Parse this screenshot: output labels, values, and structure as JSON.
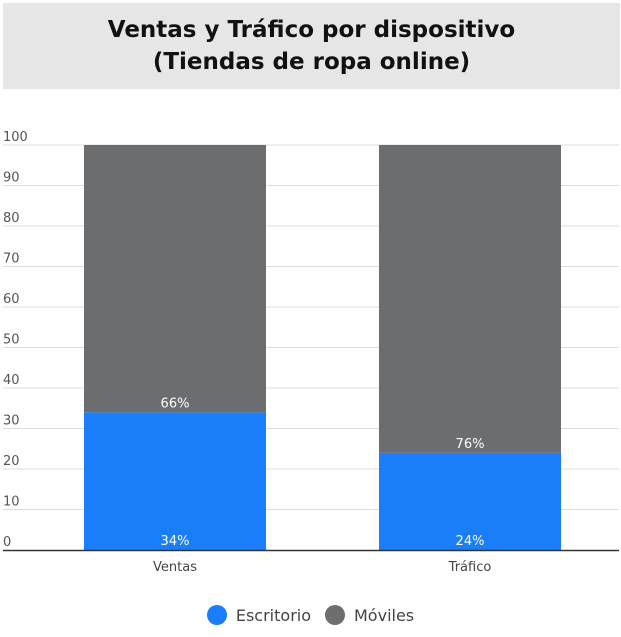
{
  "chart_data": {
    "type": "bar",
    "stacked": true,
    "title": [
      "Ventas y Tráfico por dispositivo",
      "(Tiendas de ropa online)"
    ],
    "categories": [
      "Ventas",
      "Tráfico"
    ],
    "series": [
      {
        "name": "Escritorio",
        "values": [
          34,
          24
        ],
        "labels": [
          "34%",
          "24%"
        ],
        "color": "#1a7dfa"
      },
      {
        "name": "Móviles",
        "values": [
          66,
          76
        ],
        "labels": [
          "66%",
          "76%"
        ],
        "color": "#6c6d6f"
      }
    ],
    "ylim": [
      0,
      100
    ],
    "yticks": [
      0,
      10,
      20,
      30,
      40,
      50,
      60,
      70,
      80,
      90,
      100
    ],
    "grid": true,
    "legend": "bottom-center"
  }
}
